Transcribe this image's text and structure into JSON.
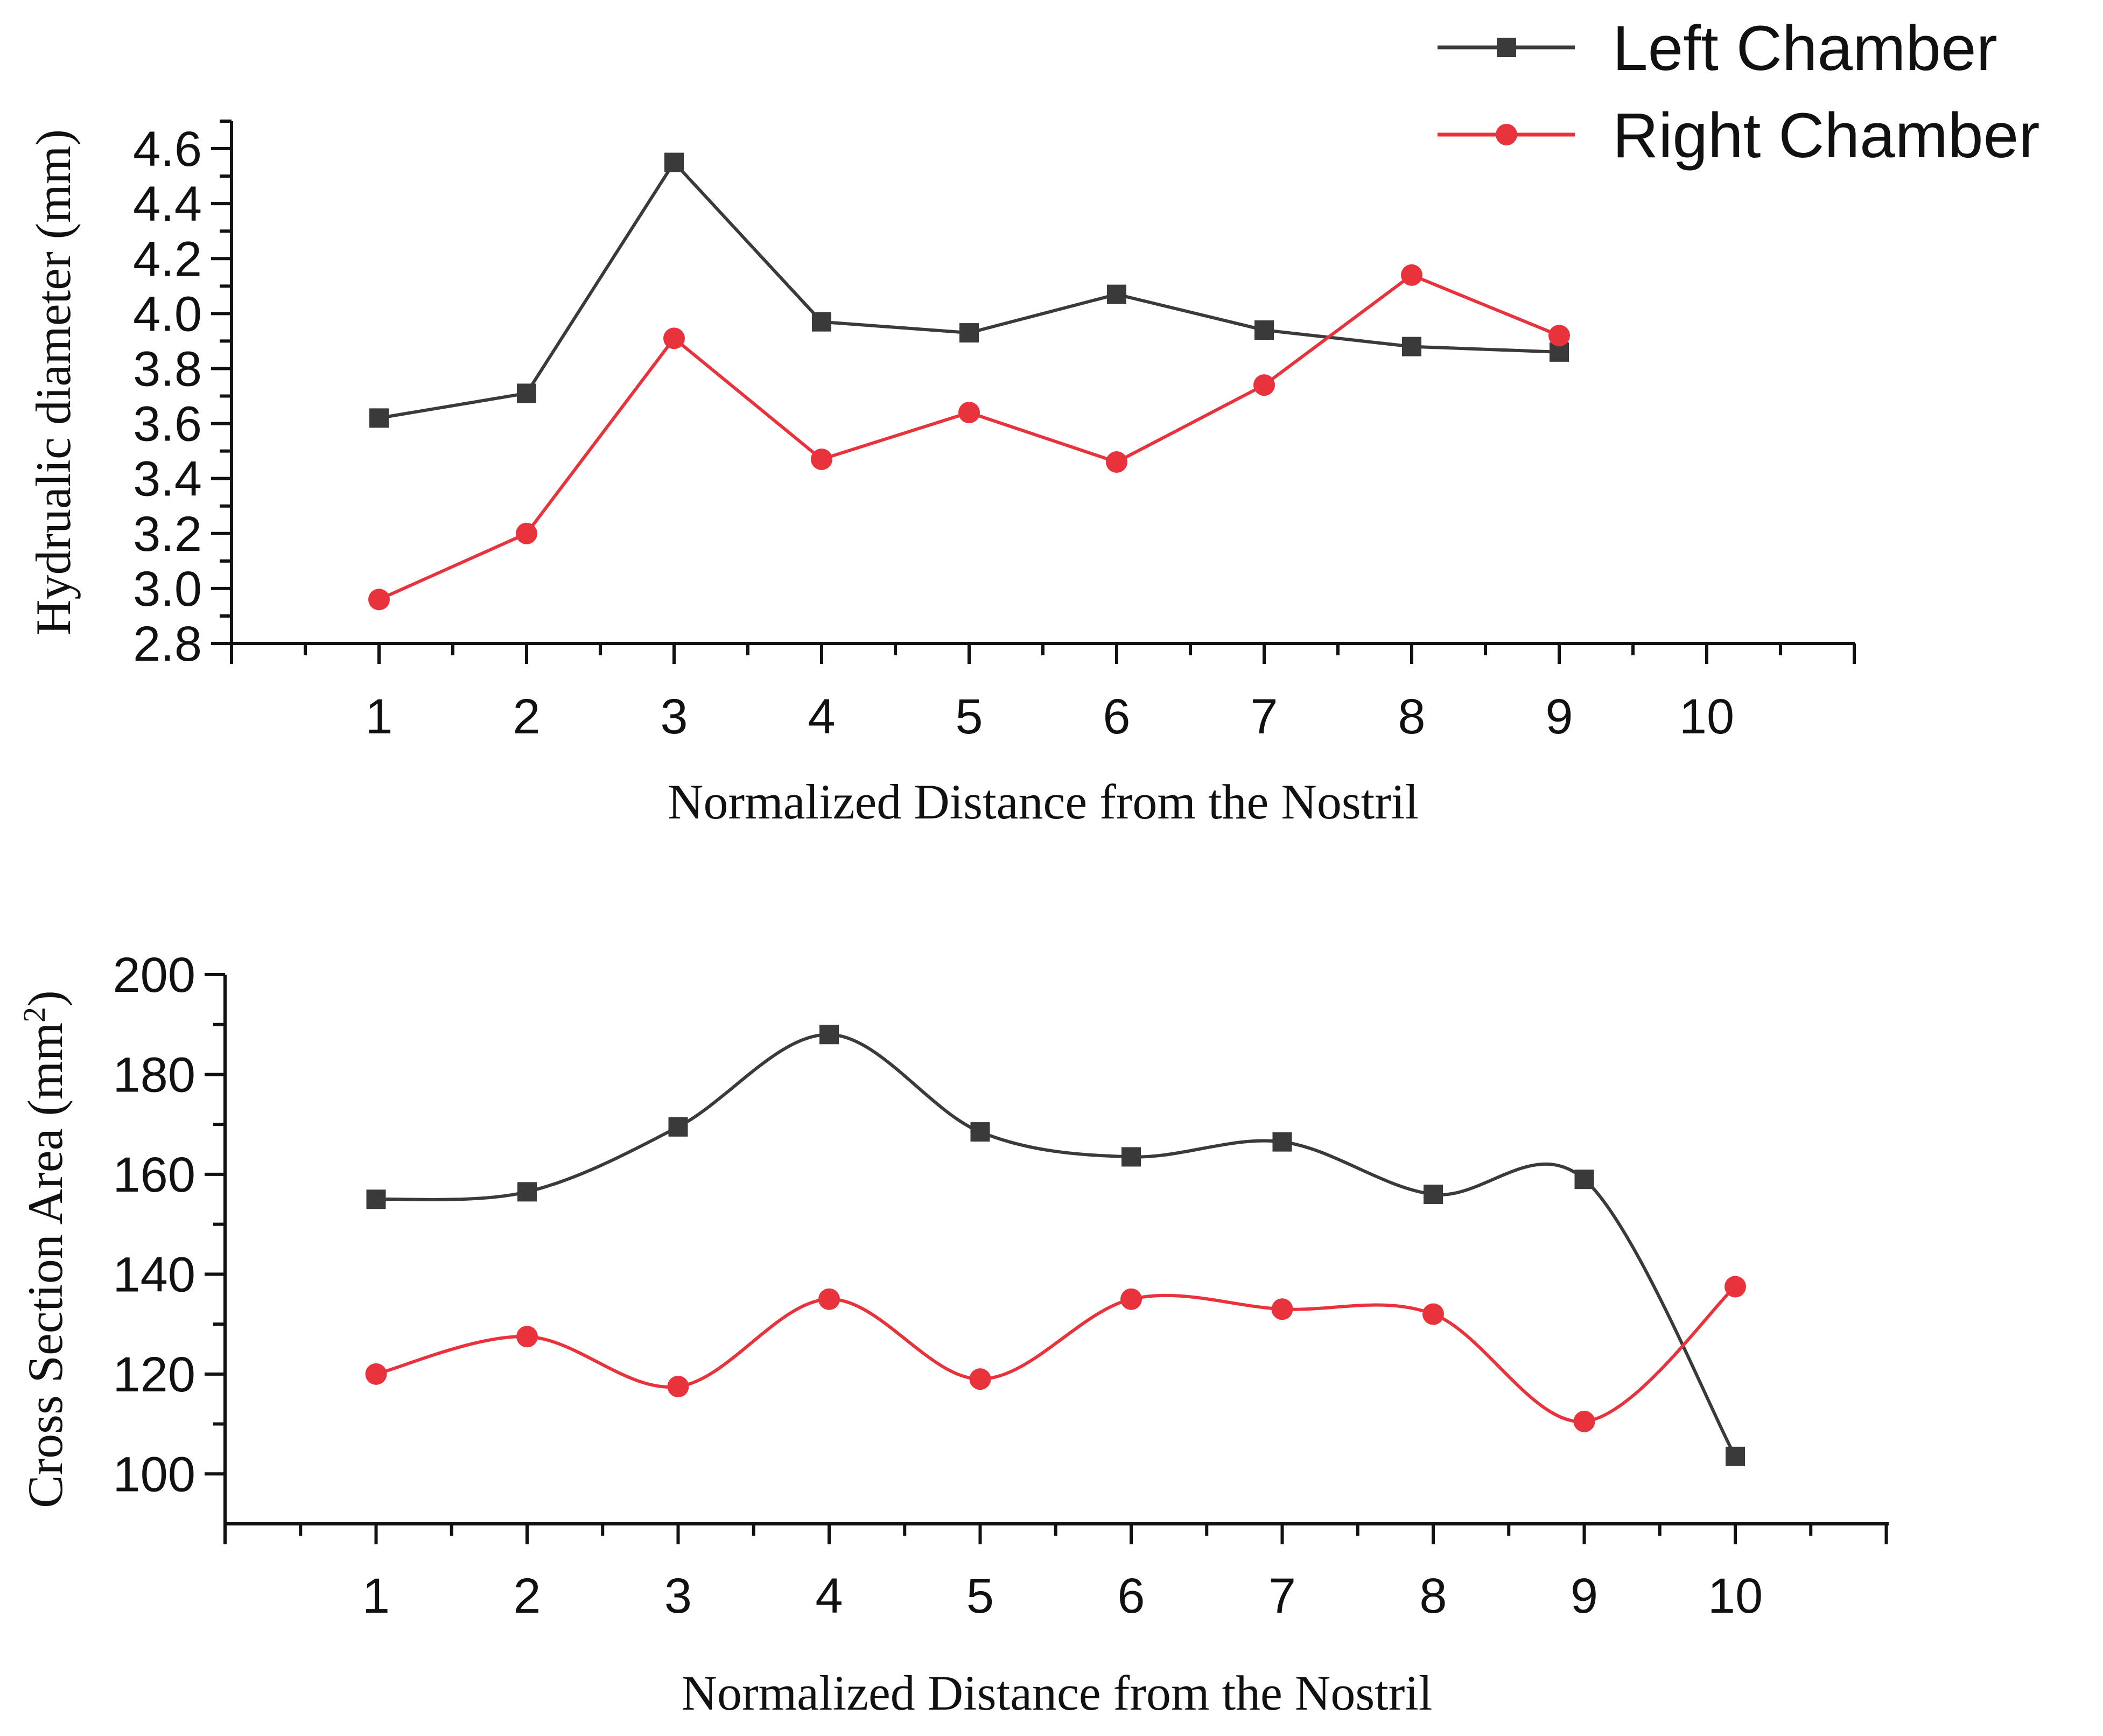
{
  "legend": {
    "entries": [
      {
        "label": "Left Chamber",
        "color": "#3a3a3a",
        "marker": "square"
      },
      {
        "label": "Right Chamber",
        "color": "#e8323c",
        "marker": "circle"
      }
    ]
  },
  "chart_data": [
    {
      "type": "line",
      "xlabel": "Normalized Distance from the Nostril",
      "ylabel": "Hydrualic diameter (mm)",
      "xlim": [
        0,
        11
      ],
      "ylim": [
        2.8,
        4.7
      ],
      "xticks": [
        1,
        2,
        3,
        4,
        5,
        6,
        7,
        8,
        9,
        10
      ],
      "xtick_labels": [
        "1",
        "2",
        "3",
        "4",
        "5",
        "6",
        "7",
        "8",
        "9",
        "10"
      ],
      "yticks": [
        2.8,
        3.0,
        3.2,
        3.4,
        3.6,
        3.8,
        4.0,
        4.2,
        4.4,
        4.6
      ],
      "ytick_labels": [
        "2.8",
        "3.0",
        "3.2",
        "3.4",
        "3.6",
        "3.8",
        "4.0",
        "4.2",
        "4.4",
        "4.6"
      ],
      "smooth": false,
      "series": [
        {
          "name": "Left Chamber",
          "x": [
            1,
            2,
            3,
            4,
            5,
            6,
            7,
            8,
            9
          ],
          "values": [
            3.62,
            3.71,
            4.55,
            3.97,
            3.93,
            4.07,
            3.94,
            3.88,
            3.86
          ]
        },
        {
          "name": "Right Chamber",
          "x": [
            1,
            2,
            3,
            4,
            5,
            6,
            7,
            8,
            9
          ],
          "values": [
            2.96,
            3.2,
            3.91,
            3.47,
            3.64,
            3.46,
            3.74,
            4.14,
            3.92
          ]
        }
      ]
    },
    {
      "type": "line",
      "xlabel": "Normalized Distance from the Nostril",
      "ylabel": "Cross Section Area (mm",
      "ylabel_superscript": "2",
      "ylabel_suffix": ")",
      "xlim": [
        0,
        11
      ],
      "ylim": [
        90,
        200
      ],
      "xticks": [
        1,
        2,
        3,
        4,
        5,
        6,
        7,
        8,
        9,
        10
      ],
      "xtick_labels": [
        "1",
        "2",
        "3",
        "4",
        "5",
        "6",
        "7",
        "8",
        "9",
        "10"
      ],
      "yticks": [
        100,
        120,
        140,
        160,
        180,
        200
      ],
      "ytick_labels": [
        "100",
        "120",
        "140",
        "160",
        "180",
        "200"
      ],
      "smooth": true,
      "series": [
        {
          "name": "Left Chamber",
          "x": [
            1,
            2,
            3,
            4,
            5,
            6,
            7,
            8,
            9,
            10
          ],
          "values": [
            155,
            156.5,
            169.5,
            188,
            168.5,
            163.5,
            166.5,
            156,
            159,
            103.5
          ]
        },
        {
          "name": "Right Chamber",
          "x": [
            1,
            2,
            3,
            4,
            5,
            6,
            7,
            8,
            9,
            10
          ],
          "values": [
            120,
            127.5,
            117.5,
            135,
            119,
            135,
            133,
            132,
            110.5,
            137.5
          ]
        }
      ]
    }
  ]
}
